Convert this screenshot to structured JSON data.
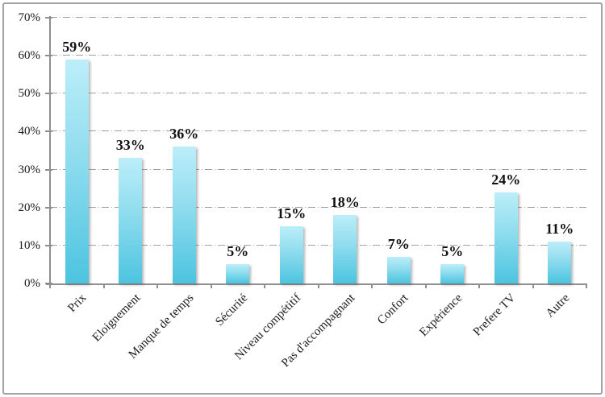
{
  "chart_data": {
    "type": "bar",
    "title": "",
    "xlabel": "",
    "ylabel": "",
    "categories": [
      "Prix",
      "Eloignement",
      "Manque de temps",
      "Sécurité",
      "Niveau compétitif",
      "Pas d'accompagnant",
      "Confort",
      "Expérience",
      "Prefere TV",
      "Autre"
    ],
    "values": [
      59,
      33,
      36,
      5,
      15,
      18,
      7,
      5,
      24,
      11
    ],
    "data_labels": [
      "59%",
      "33%",
      "36%",
      "5%",
      "15%",
      "18%",
      "7%",
      "5%",
      "24%",
      "11%"
    ],
    "y_tick_labels": [
      "0%",
      "10%",
      "20%",
      "30%",
      "40%",
      "50%",
      "60%",
      "70%"
    ],
    "y_tick_step": 10,
    "ylim": [
      0,
      70
    ],
    "grid": true,
    "gridline_style": "dash-dot",
    "legend": false,
    "x_label_rotation_deg": -45,
    "colors": {
      "bar_top": "#bceef9",
      "bar_bottom": "#4cc4e0",
      "axis": "#8f8f8f",
      "gridline": "#a2a2a2",
      "text": "#1a1a1a",
      "frame_border": "#a3a3a3",
      "background": "#ffffff"
    }
  }
}
